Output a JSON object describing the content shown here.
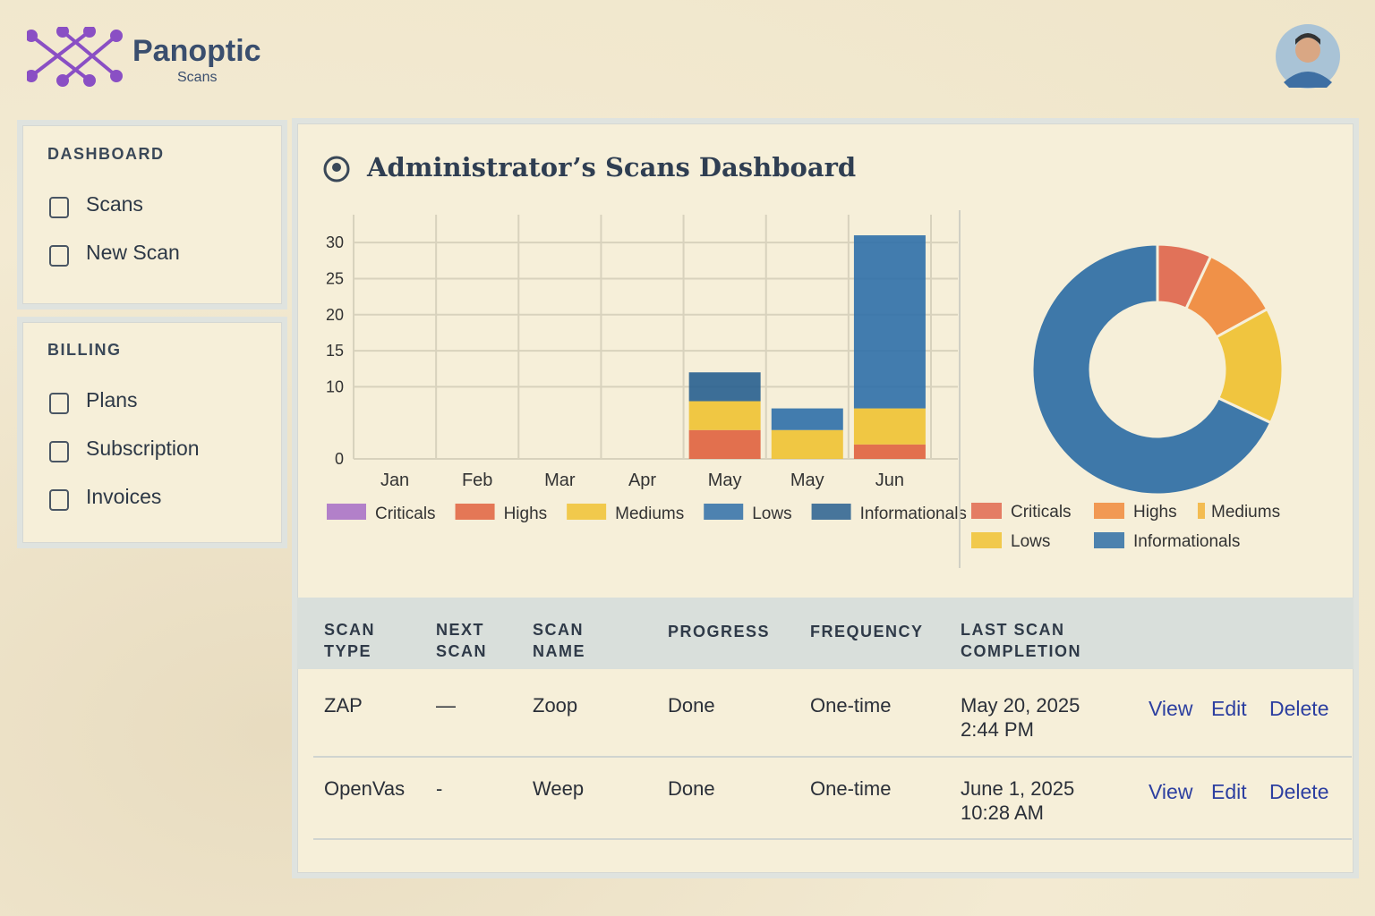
{
  "header": {
    "brand": "Panoptic",
    "subbrand": "Scans"
  },
  "sidebar": {
    "sections": [
      {
        "title": "DASHBOARD",
        "items": [
          "Scans",
          "New Scan"
        ]
      },
      {
        "title": "BILLING",
        "items": [
          "Plans",
          "Subscription",
          "Invoices"
        ]
      }
    ]
  },
  "page_title": "Administrator’s Scans Dashboard",
  "chart_data": [
    {
      "type": "bar",
      "stacked": true,
      "grid": true,
      "categories": [
        "Jan",
        "Feb",
        "Mar",
        "Apr",
        "May",
        "May",
        "Jun"
      ],
      "ylim": [
        0,
        32
      ],
      "yticks": [
        0,
        10,
        15,
        20,
        25,
        30
      ],
      "series": [
        {
          "name": "Criticals",
          "color": "#a66cc6",
          "values": [
            null,
            null,
            null,
            null,
            null,
            null,
            null
          ]
        },
        {
          "name": "Highs",
          "color": "#e0623e",
          "values": [
            null,
            null,
            null,
            null,
            4,
            null,
            2
          ]
        },
        {
          "name": "Mediums",
          "color": "#f0c232",
          "values": [
            null,
            null,
            null,
            null,
            4,
            4,
            5
          ]
        },
        {
          "name": "Lows",
          "color": "#2f6fa8",
          "values": [
            null,
            null,
            null,
            null,
            null,
            3,
            24
          ]
        },
        {
          "name": "Informationals",
          "color": "#285f8f",
          "values": [
            null,
            null,
            null,
            null,
            4,
            null,
            null
          ]
        }
      ]
    },
    {
      "type": "pie",
      "donut": true,
      "categories": [
        "Criticals",
        "Highs",
        "Mediums",
        "Lows",
        "Informationals"
      ],
      "colors": [
        "#e0684f",
        "#f08a3c",
        "#f2b33a",
        "#f0c232",
        "#2f6ea6"
      ],
      "values": [
        7,
        10,
        0,
        15,
        68
      ]
    }
  ],
  "table": {
    "headers": [
      "SCAN TYPE",
      "NEXT SCAN",
      "SCAN NAME",
      "PROGRESS",
      "FREQUENCY",
      "LAST SCAN COMPLETION"
    ],
    "rows": [
      [
        "ZAP",
        "—",
        "Zoop",
        "Done",
        "One-time",
        "May 20, 2025 2:44 PM"
      ],
      [
        "OpenVas",
        "-",
        "Weep",
        "Done",
        "One-time",
        "June 1, 2025 10:28 AM"
      ]
    ],
    "actions": [
      "View",
      "Edit",
      "Delete"
    ]
  }
}
